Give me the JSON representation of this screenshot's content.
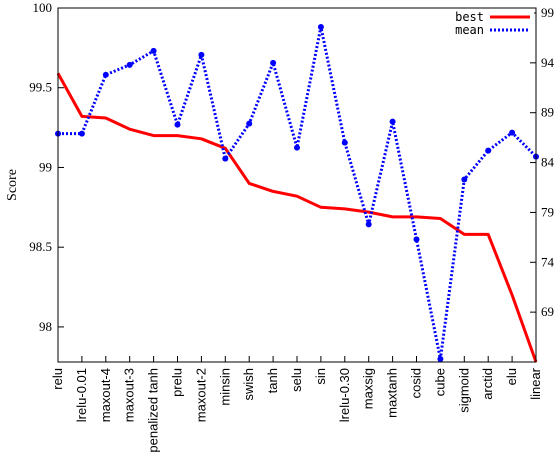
{
  "chart_data": {
    "type": "line",
    "ylabel": "Score",
    "categories": [
      "relu",
      "lrelu-0.01",
      "maxout-4",
      "maxout-3",
      "penalized tanh",
      "prelu",
      "maxout-2",
      "minsin",
      "swish",
      "tanh",
      "selu",
      "sin",
      "lrelu-0.30",
      "maxsig",
      "maxtanh",
      "cosid",
      "cube",
      "sigmoid",
      "arctid",
      "elu",
      "linear"
    ],
    "y_left": {
      "lim": [
        97.78,
        100
      ],
      "ticks": [
        "98",
        "98.5",
        "99",
        "99.5",
        "100"
      ],
      "tick_values": [
        98,
        98.5,
        99,
        99.5,
        100
      ]
    },
    "y_right": {
      "lim": [
        64,
        99.5
      ],
      "ticks": [
        "69",
        "74",
        "79",
        "84",
        "89",
        "94",
        "99"
      ],
      "tick_values": [
        69,
        74,
        79,
        84,
        89,
        94,
        99
      ]
    },
    "series": [
      {
        "name": "best",
        "axis": "left",
        "color": "#ff0000",
        "style": "solid",
        "values": [
          99.59,
          99.32,
          99.31,
          99.24,
          99.2,
          99.2,
          99.18,
          99.12,
          98.9,
          98.85,
          98.82,
          98.75,
          98.74,
          98.72,
          98.69,
          98.69,
          98.68,
          98.58,
          98.58,
          98.2,
          97.78
        ]
      },
      {
        "name": "mean",
        "axis": "right",
        "color": "#0000ff",
        "style": "dotted",
        "values": [
          86.9,
          86.9,
          92.8,
          93.8,
          95.2,
          87.8,
          94.8,
          84.4,
          87.9,
          94.0,
          85.5,
          97.6,
          86.0,
          77.8,
          88.1,
          76.3,
          64.3,
          82.3,
          85.2,
          87.0,
          84.6
        ]
      }
    ],
    "legend_position": "top-right",
    "grid": false
  }
}
